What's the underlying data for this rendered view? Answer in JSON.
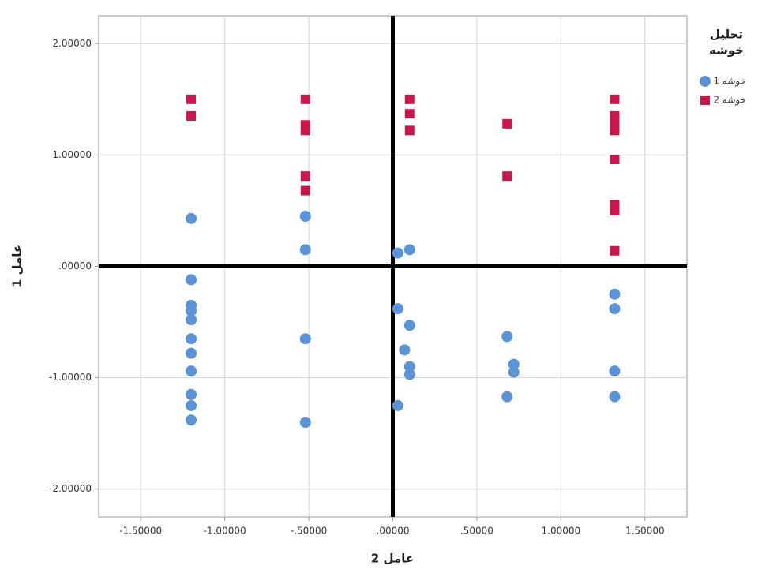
{
  "chart_data": {
    "type": "scatter",
    "x_label": "عامل 2",
    "y_label": "عامل 1",
    "legend_title": [
      "تحلیل",
      "خوشه"
    ],
    "xlim": [
      -1.75,
      1.75
    ],
    "ylim": [
      -2.25,
      2.25
    ],
    "xticks": [
      {
        "value": -1.5,
        "label": "-1.50000"
      },
      {
        "value": -1,
        "label": "-1.00000"
      },
      {
        "value": -0.5,
        "label": "-.50000"
      },
      {
        "value": 0,
        "label": ".00000"
      },
      {
        "value": 0.5,
        "label": ".50000"
      },
      {
        "value": 1,
        "label": "1.00000"
      },
      {
        "value": 1.5,
        "label": "1.50000"
      }
    ],
    "yticks": [
      {
        "value": 2,
        "label": "2.00000"
      },
      {
        "value": 1,
        "label": "1.00000"
      },
      {
        "value": 0,
        "label": ".00000"
      },
      {
        "value": -1,
        "label": "-1.00000"
      },
      {
        "value": -2,
        "label": "-2.00000"
      }
    ],
    "grid": true,
    "reference_lines": {
      "x": 0,
      "y": 0
    },
    "legend": "right",
    "series": [
      {
        "name": "خوشه 1",
        "color": "#5b93d6",
        "marker": "circle",
        "x": [
          -1.2,
          -0.52,
          -0.52,
          0.03,
          0.1,
          -1.2,
          -1.2,
          -1.2,
          -1.2,
          -1.2,
          -1.2,
          -1.2,
          -1.2,
          -1.2,
          -1.2,
          -0.52,
          -0.52,
          0.03,
          0.1,
          0.07,
          0.1,
          0.1,
          0.03,
          0.68,
          0.72,
          0.72,
          0.68,
          1.32,
          1.32,
          1.32,
          1.32
        ],
        "values": [
          0.43,
          0.45,
          0.15,
          0.12,
          0.15,
          -0.12,
          -0.35,
          -0.4,
          -0.48,
          -0.65,
          -0.78,
          -0.94,
          -1.15,
          -1.25,
          -1.38,
          -0.65,
          -1.4,
          -0.38,
          -0.53,
          -0.75,
          -0.9,
          -0.97,
          -1.25,
          -0.63,
          -0.88,
          -0.95,
          -1.17,
          -0.25,
          -0.38,
          -0.94,
          -1.17
        ]
      },
      {
        "name": "خوشه 2",
        "color": "#c8174c",
        "marker": "square",
        "x": [
          -1.2,
          -1.2,
          -0.52,
          -0.52,
          -0.52,
          -0.52,
          -0.52,
          0.1,
          0.1,
          0.1,
          0.68,
          0.68,
          1.32,
          1.32,
          1.32,
          1.32,
          1.32,
          1.32,
          1.32,
          1.32
        ],
        "values": [
          1.5,
          1.35,
          1.5,
          1.27,
          1.22,
          0.81,
          0.68,
          1.5,
          1.37,
          1.22,
          1.28,
          0.81,
          1.5,
          1.35,
          1.28,
          1.22,
          0.96,
          0.55,
          0.5,
          0.14
        ]
      }
    ]
  }
}
